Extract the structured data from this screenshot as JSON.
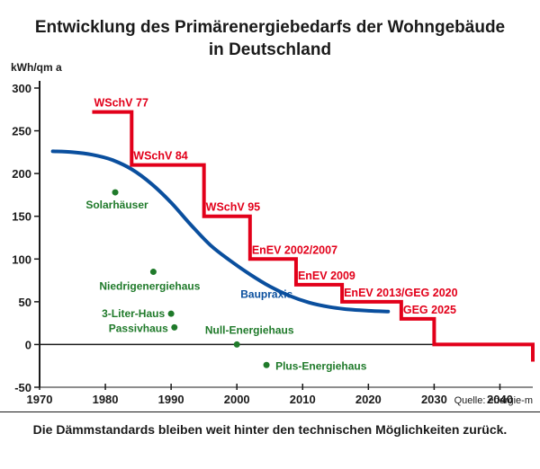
{
  "chart_data": {
    "type": "line",
    "title": "Entwicklung des Primärenergiebedarfs der Wohngebäude in Deutschland",
    "title_lines": [
      "Entwicklung des Primärenergiebedarfs der Wohngebäude",
      "in Deutschland"
    ],
    "ylabel": "kWh/qm a",
    "xlim": [
      1970,
      2045
    ],
    "ylim": [
      -50,
      300
    ],
    "x_ticks": [
      1970,
      1980,
      1990,
      2000,
      2010,
      2020,
      2030,
      2040
    ],
    "y_ticks": [
      300,
      250,
      200,
      150,
      100,
      50,
      0,
      -50
    ],
    "grid": false,
    "colors": {
      "standards": "#e2001a",
      "baupraxis": "#0a4f9e",
      "points": "#1f7a2a",
      "axis": "#1a1a1a"
    },
    "standards": {
      "name": "Dämmstandards",
      "steps": [
        {
          "label": "WSchV 77",
          "x_start": 1978,
          "x_end": 1984,
          "y": 272
        },
        {
          "label": "WSchV 84",
          "x_start": 1984,
          "x_end": 1995,
          "y": 210
        },
        {
          "label": "WSchV 95",
          "x_start": 1995,
          "x_end": 2002,
          "y": 150
        },
        {
          "label": "EnEV 2002/2007",
          "x_start": 2002,
          "x_end": 2009,
          "y": 100
        },
        {
          "label": "EnEV 2009",
          "x_start": 2009,
          "x_end": 2016,
          "y": 70
        },
        {
          "label": "EnEV 2013/GEG 2020",
          "x_start": 2016,
          "x_end": 2025,
          "y": 50
        },
        {
          "label": "GEG 2025",
          "x_start": 2025,
          "x_end": 2030,
          "y": 30
        },
        {
          "label": "",
          "x_start": 2030,
          "x_end": 2045,
          "y": 0
        }
      ],
      "end_drop": {
        "x": 2045,
        "y": -20
      }
    },
    "baupraxis": {
      "name": "Baupraxis",
      "points": [
        [
          1972,
          226
        ],
        [
          1975,
          225
        ],
        [
          1978,
          222
        ],
        [
          1981,
          216
        ],
        [
          1984,
          205
        ],
        [
          1987,
          188
        ],
        [
          1990,
          166
        ],
        [
          1993,
          140
        ],
        [
          1996,
          116
        ],
        [
          1999,
          98
        ],
        [
          2002,
          82
        ],
        [
          2005,
          68
        ],
        [
          2008,
          57
        ],
        [
          2011,
          49
        ],
        [
          2014,
          44
        ],
        [
          2017,
          41
        ],
        [
          2020,
          39.5
        ],
        [
          2023,
          38.5
        ]
      ]
    },
    "points": [
      {
        "label": "Solarhäuser",
        "x": 1981.5,
        "y": 178
      },
      {
        "label": "Niedrigenergiehaus",
        "x": 1987.3,
        "y": 85
      },
      {
        "label": "3-Liter-Haus",
        "x": 1990,
        "y": 36
      },
      {
        "label": "Passivhaus",
        "x": 1990.5,
        "y": 20
      },
      {
        "label": "Null-Energiehaus",
        "x": 2000,
        "y": 0
      },
      {
        "label": "Plus-Energiehaus",
        "x": 2004.5,
        "y": -24
      }
    ]
  },
  "source": "Quelle: energie-m",
  "footer": "Die Dämmstandards bleiben weit hinter den technischen Möglichkeiten zurück."
}
